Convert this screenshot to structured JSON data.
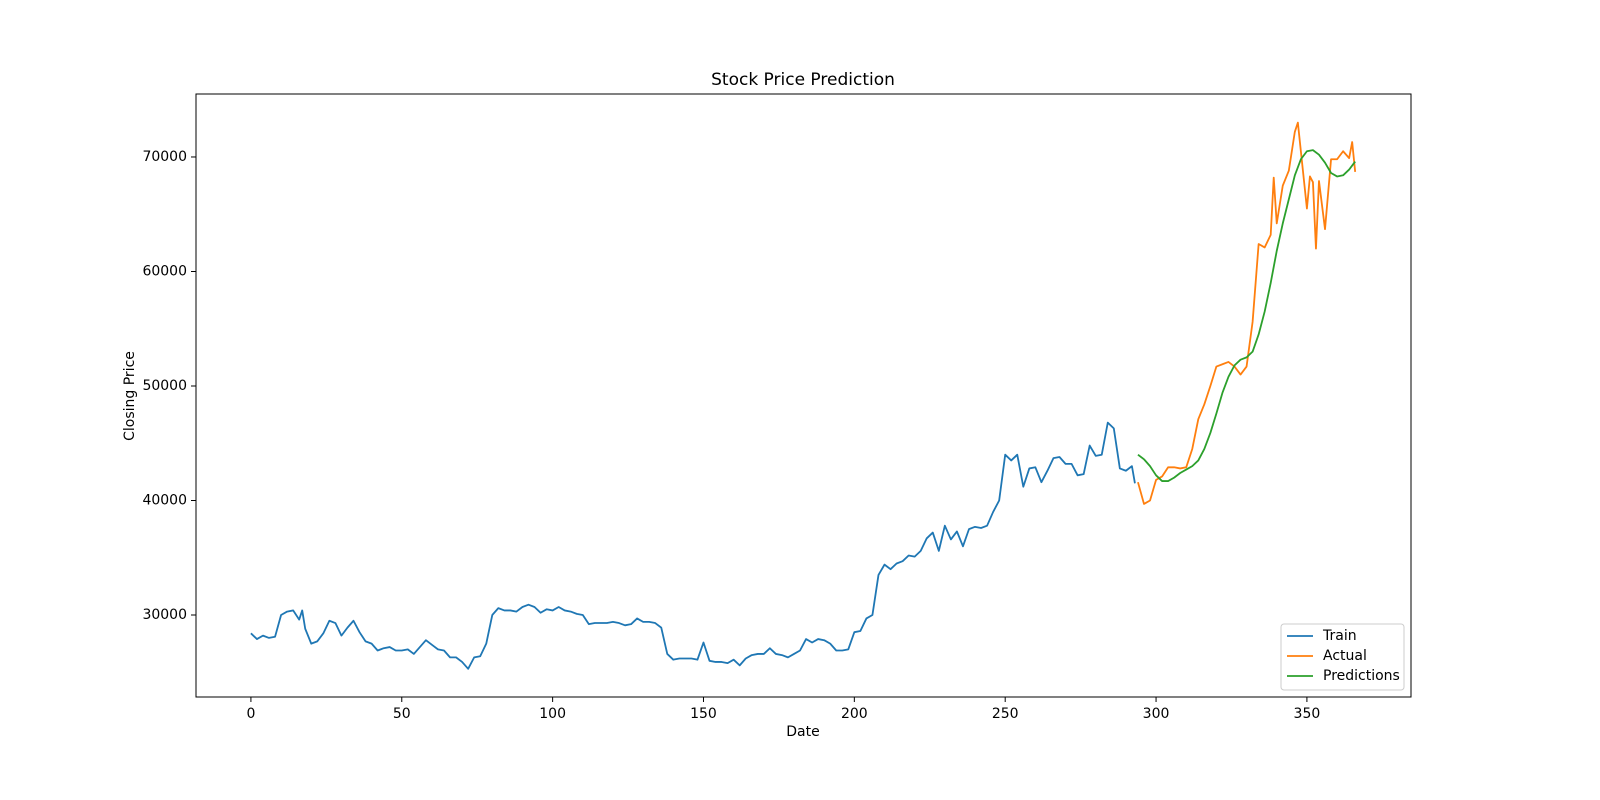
{
  "chart_data": {
    "type": "line",
    "title": "Stock Price Prediction",
    "x_label": "Date",
    "y_label": "Closing Price",
    "xlim": [
      -18.2,
      384.5
    ],
    "ylim": [
      22840,
      75500
    ],
    "xticks": [
      0,
      50,
      100,
      150,
      200,
      250,
      300,
      350
    ],
    "yticks": [
      30000,
      40000,
      50000,
      60000,
      70000
    ],
    "grid": false,
    "legend": "lower right",
    "series": [
      {
        "name": "Train",
        "color": "#1f77b4",
        "x": [
          0,
          2,
          4,
          6,
          8,
          10,
          12,
          14,
          16,
          17,
          18,
          20,
          22,
          24,
          26,
          28,
          30,
          32,
          34,
          36,
          38,
          40,
          42,
          44,
          46,
          48,
          50,
          52,
          54,
          56,
          58,
          60,
          62,
          64,
          66,
          68,
          70,
          72,
          74,
          76,
          78,
          80,
          82,
          84,
          86,
          88,
          90,
          92,
          94,
          96,
          98,
          100,
          102,
          104,
          106,
          108,
          110,
          112,
          114,
          116,
          118,
          120,
          122,
          124,
          126,
          128,
          130,
          132,
          134,
          136,
          138,
          140,
          142,
          144,
          146,
          148,
          150,
          152,
          154,
          156,
          158,
          160,
          162,
          164,
          166,
          168,
          170,
          172,
          174,
          176,
          178,
          180,
          182,
          184,
          186,
          188,
          190,
          192,
          194,
          196,
          198,
          200,
          202,
          204,
          206,
          208,
          210,
          212,
          214,
          216,
          218,
          220,
          222,
          224,
          226,
          228,
          230,
          232,
          234,
          236,
          238,
          240,
          242,
          244,
          246,
          248,
          250,
          252,
          254,
          256,
          258,
          260,
          262,
          264,
          266,
          268,
          270,
          272,
          274,
          276,
          278,
          280,
          282,
          284,
          286,
          288,
          290,
          292,
          293
        ],
        "values": [
          28400,
          27900,
          28200,
          28000,
          28100,
          30000,
          30300,
          30400,
          29600,
          30400,
          28800,
          27500,
          27700,
          28400,
          29500,
          29300,
          28200,
          28900,
          29500,
          28500,
          27700,
          27500,
          26900,
          27100,
          27200,
          26900,
          26900,
          27000,
          26600,
          27200,
          27800,
          27400,
          27000,
          26900,
          26300,
          26300,
          25900,
          25300,
          26300,
          26400,
          27500,
          30000,
          30600,
          30400,
          30400,
          30300,
          30700,
          30900,
          30700,
          30200,
          30500,
          30400,
          30700,
          30400,
          30300,
          30100,
          30000,
          29200,
          29300,
          29300,
          29300,
          29400,
          29300,
          29100,
          29200,
          29700,
          29400,
          29400,
          29300,
          28900,
          26600,
          26100,
          26200,
          26200,
          26200,
          26100,
          27600,
          26000,
          25900,
          25900,
          25800,
          26100,
          25600,
          26200,
          26500,
          26600,
          26600,
          27100,
          26600,
          26500,
          26300,
          26600,
          26900,
          27900,
          27600,
          27900,
          27800,
          27500,
          26900,
          26900,
          27000,
          28500,
          28600,
          29700,
          30000,
          33500,
          34400,
          34000,
          34500,
          34700,
          35200,
          35100,
          35600,
          36700,
          37200,
          35600,
          37800,
          36600,
          37300,
          36000,
          37500,
          37700,
          37600,
          37800,
          39000,
          40000,
          44000,
          43500,
          44000,
          41200,
          42800,
          42900,
          41600,
          42600,
          43700,
          43800,
          43200,
          43200,
          42200,
          42300,
          44800,
          43900,
          44000,
          46800,
          46300,
          42800,
          42600,
          43000,
          41500
        ]
      },
      {
        "name": "Actual",
        "color": "#ff7f0e",
        "x": [
          294,
          296,
          298,
          300,
          302,
          304,
          306,
          308,
          310,
          312,
          314,
          316,
          318,
          320,
          322,
          324,
          326,
          328,
          330,
          332,
          334,
          336,
          338,
          339,
          340,
          342,
          344,
          346,
          347,
          348,
          350,
          351,
          352,
          353,
          354,
          356,
          358,
          360,
          362,
          364,
          365,
          366
        ],
        "values": [
          41600,
          39700,
          40000,
          41800,
          42100,
          42900,
          42900,
          42800,
          42900,
          44500,
          47100,
          48400,
          50000,
          51700,
          51900,
          52100,
          51700,
          51000,
          51700,
          55600,
          62400,
          62100,
          63200,
          68200,
          64200,
          67500,
          68800,
          72200,
          73000,
          70500,
          65500,
          68300,
          67800,
          62000,
          67900,
          63700,
          69800,
          69800,
          70500,
          69900,
          71300,
          68700
        ]
      },
      {
        "name": "Predictions",
        "color": "#2ca02c",
        "x": [
          294,
          296,
          298,
          300,
          302,
          304,
          306,
          308,
          310,
          312,
          314,
          316,
          318,
          320,
          322,
          324,
          326,
          328,
          330,
          332,
          334,
          336,
          338,
          340,
          342,
          344,
          346,
          348,
          350,
          352,
          354,
          356,
          358,
          360,
          362,
          364,
          366
        ],
        "values": [
          44000,
          43600,
          43000,
          42200,
          41700,
          41700,
          42000,
          42400,
          42700,
          43000,
          43500,
          44500,
          45900,
          47600,
          49400,
          50800,
          51800,
          52300,
          52500,
          53000,
          54500,
          56500,
          59000,
          61800,
          64200,
          66300,
          68400,
          69800,
          70500,
          70600,
          70200,
          69500,
          68600,
          68300,
          68400,
          68900,
          69600
        ]
      }
    ]
  }
}
